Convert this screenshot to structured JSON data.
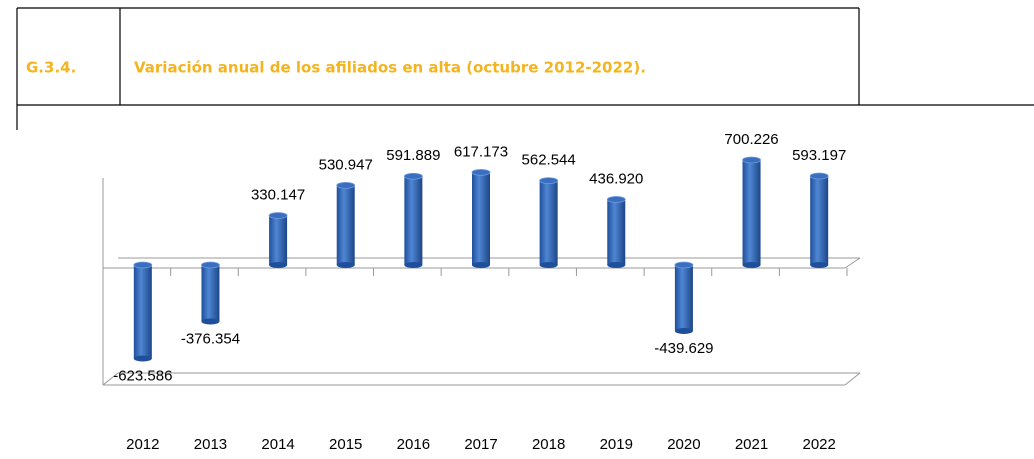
{
  "header": {
    "code": "G.3.4.",
    "title": "Variación anual de los afiliados en alta (octubre 2012-2022)."
  },
  "chart_data": {
    "type": "bar",
    "categories": [
      "2012",
      "2013",
      "2014",
      "2015",
      "2016",
      "2017",
      "2018",
      "2019",
      "2020",
      "2021",
      "2022"
    ],
    "values": [
      -623586,
      -376354,
      330147,
      530947,
      591889,
      617173,
      562544,
      436920,
      -439629,
      700226,
      593197
    ],
    "value_labels": [
      "-623.586",
      "-376.354",
      "330.147",
      "530.947",
      "591.889",
      "617.173",
      "562.544",
      "436.920",
      "-439.629",
      "700.226",
      "593.197"
    ],
    "color": "#3a6fc0",
    "ylim": [
      -750000,
      750000
    ]
  }
}
